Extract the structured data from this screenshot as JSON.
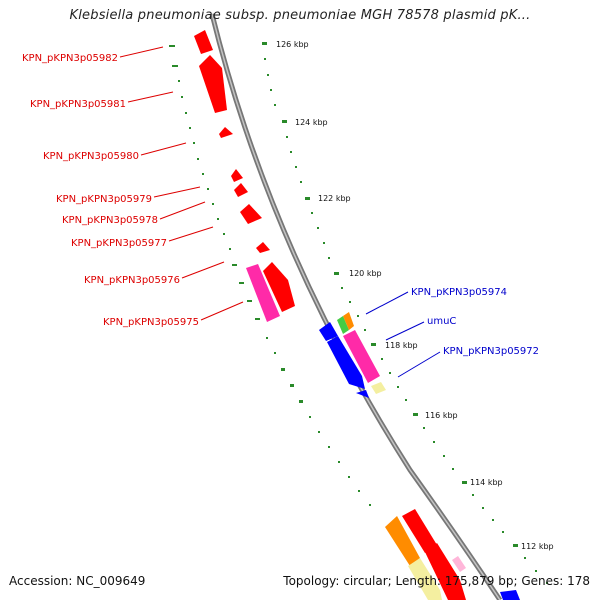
{
  "header": {
    "title": "Klebsiella pneumoniae subsp. pneumoniae MGH 78578 plasmid pK..."
  },
  "footer": {
    "accession_text": "Accession: NC_009649",
    "summary_text": "Topology: circular; Length: 175,879 bp; Genes: 178"
  },
  "colors": {
    "backbone": "#8a8a8a",
    "tick": "#2a8a2a",
    "reverse_label": "#dd0000",
    "forward_label": "#0000cc",
    "red": "#ff0000",
    "magenta": "#ff2aa8",
    "blue": "#0000ff",
    "green": "#44cc44",
    "orange": "#ff8c00",
    "pale_yellow": "#f4efa0",
    "light_pink": "#ffb6d9"
  },
  "scale": {
    "tick_labels": [
      "126 kbp",
      "124 kbp",
      "122 kbp",
      "120 kbp",
      "118 kbp",
      "116 kbp",
      "114 kbp",
      "112 kbp"
    ]
  },
  "gene_labels": {
    "reverse": [
      "KPN_pKPN3p05982",
      "KPN_pKPN3p05981",
      "KPN_pKPN3p05980",
      "KPN_pKPN3p05979",
      "KPN_pKPN3p05978",
      "KPN_pKPN3p05977",
      "KPN_pKPN3p05976",
      "KPN_pKPN3p05975"
    ],
    "forward": [
      "KPN_pKPN3p05974",
      "umuC",
      "KPN_pKPN3p05972"
    ]
  }
}
